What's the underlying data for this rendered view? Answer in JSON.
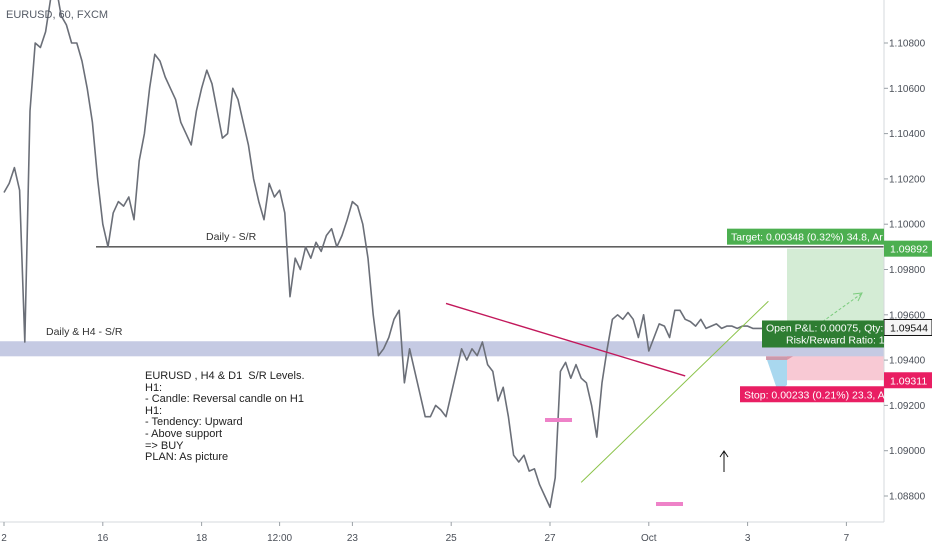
{
  "header": {
    "symbol": "EURUSD, 60, FXCM"
  },
  "levels": {
    "daily_label": "Daily - S/R",
    "daily_h4_label": "Daily & H4 -  S/R"
  },
  "notes": {
    "lines": [
      "EURUSD , H4 & D1  S/R Levels.",
      "H1:",
      "- Candle: Reversal candle on H1",
      "H1:",
      "- Tendency: Upward",
      "- Above support",
      "=> BUY",
      "PLAN: As picture"
    ]
  },
  "position": {
    "target_label": "Target: 0.00348 (0.32%) 34.8, Ar",
    "stop_label": "Stop: 0.00233 (0.21%) 23.3, Ar",
    "pnl_label": "Open P&L: 0.00075, Qty:",
    "rr_label": "Risk/Reward Ratio: 1.",
    "target_price": "1.09892",
    "entry_price": "1.09544",
    "stop_price": "1.09311"
  },
  "colors": {
    "price_line": "#6b6f78",
    "support_band": "#c5cae3",
    "trendline": "#c2185b",
    "target_zone": "#d4ecd5",
    "target_tag": "#4caf50",
    "stop_zone": "#f8c9d4",
    "stop_tag": "#e91e63",
    "entry_tag": "#2e7d32",
    "marker": "#ee82c8"
  },
  "chart_data": {
    "type": "line",
    "title": "EURUSD, 60, FXCM",
    "xlabel": "",
    "ylabel": "",
    "y_tick_labels": [
      "1.10800",
      "1.10600",
      "1.10400",
      "1.10200",
      "1.10000",
      "1.09800",
      "1.09600",
      "1.09400",
      "1.09200",
      "1.09000",
      "1.08800"
    ],
    "y_tick_values": [
      1.108,
      1.106,
      1.104,
      1.102,
      1.1,
      1.098,
      1.096,
      1.094,
      1.092,
      1.09,
      1.088
    ],
    "ylim": [
      1.0865,
      1.1105
    ],
    "x_tick_labels": [
      "2",
      "16",
      "18",
      "12:00",
      "23",
      "25",
      "27",
      "Oct",
      "3",
      "7"
    ],
    "x_tick_positions": [
      0,
      19,
      38,
      53,
      67,
      86,
      105,
      124,
      143,
      162
    ],
    "xlim": [
      0,
      168
    ],
    "grid": false,
    "series": [
      {
        "x": [
          0,
          1,
          2,
          3,
          4,
          5,
          6,
          7,
          8,
          9,
          10,
          11,
          12,
          13,
          14,
          15,
          16,
          17,
          18,
          19,
          20,
          21,
          22,
          23,
          24,
          25,
          26,
          27,
          28,
          29,
          30,
          31,
          32,
          33,
          34,
          35,
          36,
          37,
          38,
          39,
          40,
          41,
          42,
          43,
          44,
          45,
          46,
          47,
          48,
          49,
          50,
          51,
          52,
          53,
          54,
          55,
          56,
          57,
          58,
          59,
          60,
          61,
          62,
          63,
          64,
          65,
          66,
          67,
          68,
          69,
          70,
          71,
          72,
          73,
          74,
          75,
          76,
          77,
          78,
          79,
          80,
          81,
          82,
          83,
          84,
          85,
          86,
          87,
          88,
          89,
          90,
          91,
          92,
          93,
          94,
          95,
          96,
          97,
          98,
          99,
          100,
          101,
          102,
          103,
          104,
          105,
          106,
          107,
          108,
          109,
          110,
          111,
          112,
          113,
          114,
          115,
          116,
          117,
          118,
          119,
          120,
          121,
          122,
          123,
          124,
          125,
          126,
          127,
          128,
          129,
          130,
          131,
          132,
          133,
          134,
          135,
          136,
          137,
          138,
          139,
          140,
          141,
          142,
          143,
          144,
          145,
          146,
          147
        ],
        "y": [
          1.1014,
          1.1018,
          1.1025,
          1.1015,
          1.0948,
          1.105,
          1.108,
          1.1078,
          1.1085,
          1.11,
          1.1105,
          1.1092,
          1.1088,
          1.108,
          1.108,
          1.1072,
          1.106,
          1.1045,
          1.102,
          1.1,
          1.099,
          1.1005,
          1.101,
          1.1008,
          1.1012,
          1.1002,
          1.1028,
          1.104,
          1.106,
          1.1075,
          1.1072,
          1.1065,
          1.106,
          1.1055,
          1.1045,
          1.104,
          1.1035,
          1.105,
          1.106,
          1.1068,
          1.1062,
          1.105,
          1.1038,
          1.104,
          1.106,
          1.1055,
          1.1045,
          1.1035,
          1.102,
          1.101,
          1.1002,
          1.1018,
          1.1012,
          1.1015,
          1.1005,
          1.0968,
          1.0985,
          1.098,
          1.099,
          1.0985,
          1.0992,
          1.0988,
          1.0995,
          1.0998,
          1.099,
          1.0995,
          1.1002,
          1.101,
          1.1008,
          1.1,
          1.0985,
          1.096,
          1.0942,
          1.0945,
          1.095,
          1.0958,
          1.0962,
          1.093,
          1.0945,
          1.0935,
          1.0925,
          1.0915,
          1.0915,
          1.092,
          1.0918,
          1.0915,
          1.0925,
          1.0935,
          1.0945,
          1.094,
          1.0945,
          1.0942,
          1.0948,
          1.0938,
          1.0935,
          1.0922,
          1.0928,
          1.0915,
          1.0898,
          1.0895,
          1.0898,
          1.0891,
          1.0892,
          1.0885,
          1.088,
          1.0875,
          1.0888,
          1.0935,
          1.0939,
          1.0932,
          1.0938,
          1.0932,
          1.093,
          1.092,
          1.0906,
          1.093,
          1.0945,
          1.0958,
          1.096,
          1.0958,
          1.0961,
          1.0958,
          1.095,
          1.096,
          1.0944,
          1.095,
          1.0956,
          1.0955,
          1.095,
          1.0962,
          1.0962,
          1.0958,
          1.0957,
          1.0955,
          1.0958,
          1.0954,
          1.0955,
          1.0956,
          1.0954,
          1.0955,
          1.0955,
          1.0954,
          1.0955,
          1.0955,
          1.0954,
          1.0954,
          1.0954,
          1.0954
        ]
      }
    ],
    "annotations": {
      "daily_sr_level": 1.099,
      "daily_h4_support_band": [
        1.0943,
        1.0947
      ],
      "trendline": {
        "x": [
          85,
          131
        ],
        "y": [
          1.0965,
          1.0933
        ]
      },
      "rising_trendline": {
        "x": [
          111,
          147
        ],
        "y": [
          1.0886,
          1.0966
        ]
      },
      "target_price": 1.09892,
      "entry_price": 1.09544,
      "stop_price": 1.09311
    }
  }
}
